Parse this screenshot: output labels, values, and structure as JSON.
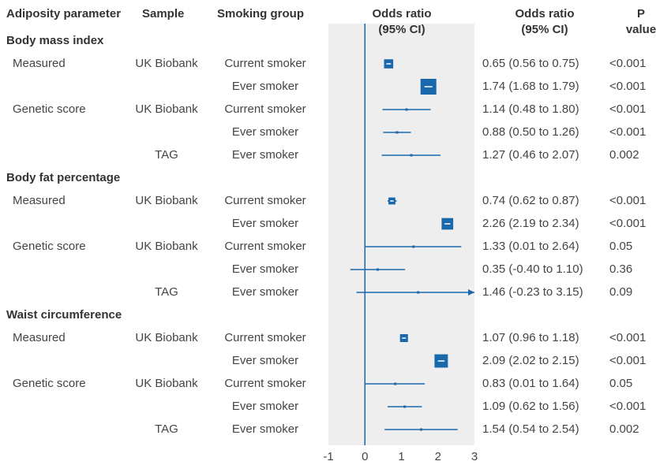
{
  "chart_data": {
    "type": "forest",
    "columns": [
      [
        "Adiposity parameter"
      ],
      [
        "Sample"
      ],
      [
        "Smoking group"
      ],
      [
        "Odds ratio",
        "(95% CI)"
      ],
      [
        "Odds ratio",
        "(95% CI)"
      ],
      [
        "P",
        "value"
      ]
    ],
    "xlim": [
      -1,
      3
    ],
    "xticks": [
      -1,
      0,
      1,
      2,
      3
    ],
    "reference": 0,
    "color": "#1a68ac",
    "background": "#eeeeee",
    "sections": [
      {
        "title": "Body mass index",
        "rows": [
          {
            "parameter": "Measured",
            "sample": "UK Biobank",
            "group": "Current smoker",
            "value": 0.65,
            "lower": 0.56,
            "upper": 0.75,
            "value_label": "0.65 (0.56 to 0.75)",
            "p": "<0.001"
          },
          {
            "group": "Ever smoker",
            "value": 1.74,
            "lower": 1.68,
            "upper": 1.79,
            "value_label": "1.74 (1.68 to 1.79)",
            "p": "<0.001"
          },
          {
            "parameter": "Genetic score",
            "sample": "UK Biobank",
            "group": "Current smoker",
            "value": 1.14,
            "lower": 0.48,
            "upper": 1.8,
            "value_label": "1.14 (0.48 to 1.80)",
            "p": "<0.001"
          },
          {
            "group": "Ever smoker",
            "value": 0.88,
            "lower": 0.5,
            "upper": 1.26,
            "value_label": "0.88 (0.50 to 1.26)",
            "p": "<0.001"
          },
          {
            "sample": "TAG",
            "group": "Ever smoker",
            "value": 1.27,
            "lower": 0.46,
            "upper": 2.07,
            "value_label": "1.27 (0.46 to 2.07)",
            "p": "0.002"
          }
        ]
      },
      {
        "title": "Body fat percentage",
        "rows": [
          {
            "parameter": "Measured",
            "sample": "UK Biobank",
            "group": "Current smoker",
            "value": 0.74,
            "lower": 0.62,
            "upper": 0.87,
            "value_label": "0.74 (0.62 to 0.87)",
            "p": "<0.001"
          },
          {
            "group": "Ever smoker",
            "value": 2.26,
            "lower": 2.19,
            "upper": 2.34,
            "value_label": "2.26 (2.19 to 2.34)",
            "p": "<0.001"
          },
          {
            "parameter": "Genetic score",
            "sample": "UK Biobank",
            "group": "Current smoker",
            "value": 1.33,
            "lower": 0.01,
            "upper": 2.64,
            "value_label": "1.33 (0.01 to 2.64)",
            "p": "0.05"
          },
          {
            "group": "Ever smoker",
            "value": 0.35,
            "lower": -0.4,
            "upper": 1.1,
            "value_label": "0.35 (-0.40 to 1.10)",
            "p": "0.36"
          },
          {
            "sample": "TAG",
            "group": "Ever smoker",
            "value": 1.46,
            "lower": -0.23,
            "upper": 3.15,
            "value_label": "1.46 (-0.23 to 3.15)",
            "p": "0.09"
          }
        ]
      },
      {
        "title": "Waist circumference",
        "rows": [
          {
            "parameter": "Measured",
            "sample": "UK Biobank",
            "group": "Current smoker",
            "value": 1.07,
            "lower": 0.96,
            "upper": 1.18,
            "value_label": "1.07 (0.96 to 1.18)",
            "p": "<0.001"
          },
          {
            "group": "Ever smoker",
            "value": 2.09,
            "lower": 2.02,
            "upper": 2.15,
            "value_label": "2.09 (2.02 to 2.15)",
            "p": "<0.001"
          },
          {
            "parameter": "Genetic score",
            "sample": "UK Biobank",
            "group": "Current smoker",
            "value": 0.83,
            "lower": 0.01,
            "upper": 1.64,
            "value_label": "0.83 (0.01 to 1.64)",
            "p": "0.05"
          },
          {
            "group": "Ever smoker",
            "value": 1.09,
            "lower": 0.62,
            "upper": 1.56,
            "value_label": "1.09 (0.62 to 1.56)",
            "p": "<0.001"
          },
          {
            "sample": "TAG",
            "group": "Ever smoker",
            "value": 1.54,
            "lower": 0.54,
            "upper": 2.54,
            "value_label": "1.54 (0.54 to 2.54)",
            "p": "0.002"
          }
        ]
      }
    ]
  }
}
